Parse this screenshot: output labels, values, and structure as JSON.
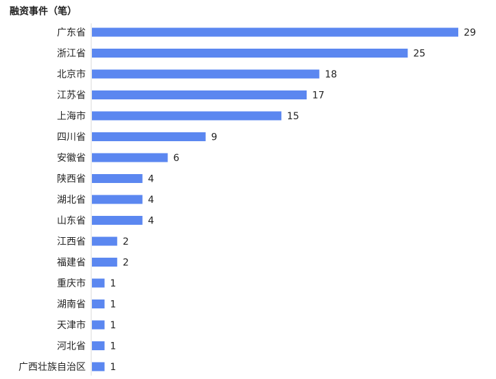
{
  "chart_data": {
    "type": "bar",
    "orientation": "horizontal",
    "title": "融资事件（笔）",
    "categories": [
      "广东省",
      "浙江省",
      "北京市",
      "江苏省",
      "上海市",
      "四川省",
      "安徽省",
      "陕西省",
      "湖北省",
      "山东省",
      "江西省",
      "福建省",
      "重庆市",
      "湖南省",
      "天津市",
      "河北省",
      "广西壮族自治区"
    ],
    "values": [
      29,
      25,
      18,
      17,
      15,
      9,
      6,
      4,
      4,
      4,
      2,
      2,
      1,
      1,
      1,
      1,
      1
    ],
    "xlim": [
      0,
      29
    ],
    "bar_color": "#5b87f0",
    "data_labels": true,
    "grid": false
  }
}
